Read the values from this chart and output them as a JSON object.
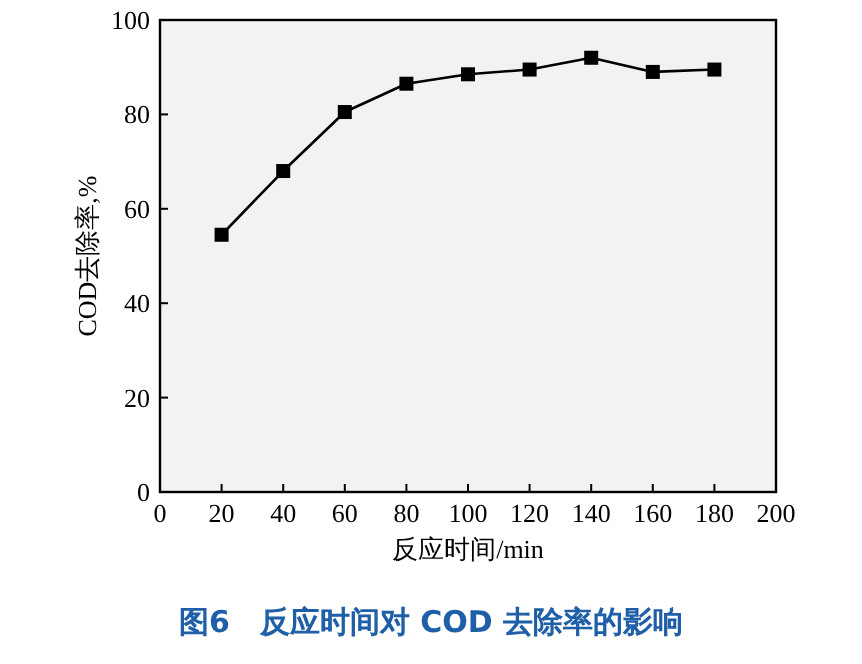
{
  "chart_data": {
    "type": "line",
    "title": "图6　反应时间对 COD 去除率的影响",
    "xlabel": "反应时间/min",
    "ylabel": "COD去除率,%",
    "x": [
      20,
      40,
      60,
      80,
      100,
      120,
      140,
      160,
      180
    ],
    "series": [
      {
        "color": "#000000",
        "values": [
          54.5,
          68,
          80.5,
          86.5,
          88.5,
          89.5,
          92,
          89,
          89.5
        ]
      }
    ],
    "xlim": [
      0,
      200
    ],
    "xticks": [
      0,
      20,
      40,
      60,
      80,
      100,
      120,
      140,
      160,
      180,
      200
    ],
    "ylim": [
      0,
      100
    ],
    "yticks": [
      0,
      20,
      40,
      60,
      80,
      100
    ],
    "marker": "square",
    "line_style": "solid"
  }
}
